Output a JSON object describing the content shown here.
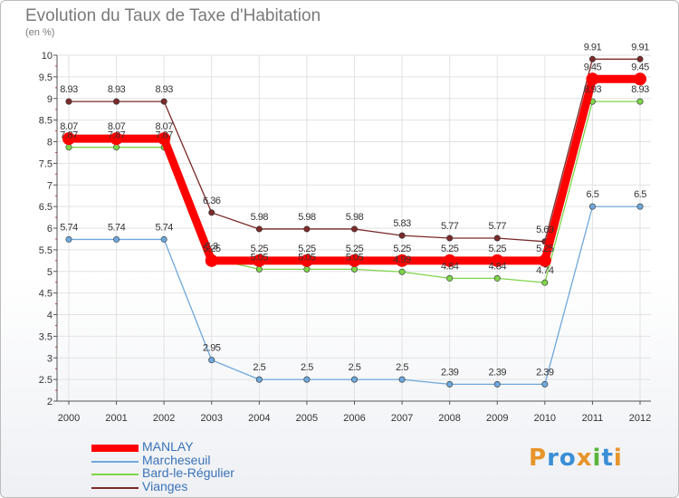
{
  "title": "Evolution du Taux de Taxe d'Habitation",
  "subtitle": "(en %)",
  "logo": {
    "text": "Proxiti",
    "colors": [
      "#e8942a",
      "#3a8fd6",
      "#3a8fd6",
      "#e8942a",
      "#5ab53a",
      "#3a8fd6",
      "#e8942a"
    ]
  },
  "chart_data": {
    "type": "line",
    "title": "Evolution du Taux de Taxe d'Habitation",
    "ylabel": "(en %)",
    "xlabel": "",
    "ylim": [
      2,
      10
    ],
    "yticks": [
      "2",
      "2.5",
      "3",
      "3.5",
      "4",
      "4.5",
      "5",
      "5.5",
      "6",
      "6.5",
      "7",
      "7.5",
      "8",
      "8.5",
      "9",
      "9.5",
      "10"
    ],
    "grid": true,
    "legend_position": "bottom-left",
    "categories": [
      "2000",
      "2001",
      "2002",
      "2003",
      "2004",
      "2005",
      "2006",
      "2007",
      "2008",
      "2009",
      "2010",
      "2011",
      "2012"
    ],
    "series": [
      {
        "name": "Vianges",
        "color": "#7b2a2a",
        "labels": [
          "8.93",
          "8.93",
          "8.93",
          "6.36",
          "5.98",
          "5.98",
          "5.98",
          "5.83",
          "5.77",
          "5.77",
          "5.69",
          "9.91",
          "9.91"
        ],
        "values": [
          8.93,
          8.93,
          8.93,
          6.36,
          5.98,
          5.98,
          5.98,
          5.83,
          5.77,
          5.77,
          5.69,
          9.91,
          9.91
        ]
      },
      {
        "name": "Bard-le-Régulier",
        "color": "#7fd44a",
        "labels": [
          "7.87",
          "7.87",
          "7.87",
          "5.3",
          "5.05",
          "5.05",
          "5.05",
          "4.99",
          "4.84",
          "4.84",
          "4.74",
          "8.93",
          "8.93"
        ],
        "values": [
          7.87,
          7.87,
          7.87,
          5.3,
          5.05,
          5.05,
          5.05,
          4.99,
          4.84,
          4.84,
          4.74,
          8.93,
          8.93
        ]
      },
      {
        "name": "Marcheseuil",
        "color": "#6fa8dc",
        "labels": [
          "5.74",
          "5.74",
          "5.74",
          "2.95",
          "2.5",
          "2.5",
          "2.5",
          "2.5",
          "2.39",
          "2.39",
          "2.39",
          "6.5",
          "6.5"
        ],
        "values": [
          5.74,
          5.74,
          5.74,
          2.95,
          2.5,
          2.5,
          2.5,
          2.5,
          2.39,
          2.39,
          2.39,
          6.5,
          6.5
        ]
      },
      {
        "name": "MANLAY",
        "color": "#ff0000",
        "labels": [
          "8.07",
          "8.07",
          "8.07",
          "5.25",
          "5.25",
          "5.25",
          "5.25",
          "5.25",
          "5.25",
          "5.25",
          "5.25",
          "9.45",
          "9.45"
        ],
        "values": [
          8.07,
          8.07,
          8.07,
          5.25,
          5.25,
          5.25,
          5.25,
          5.25,
          5.25,
          5.25,
          5.25,
          9.45,
          9.45
        ]
      }
    ],
    "legend": [
      {
        "name": "MANLAY",
        "color": "#ff0000"
      },
      {
        "name": "Marcheseuil",
        "color": "#6fa8dc"
      },
      {
        "name": "Bard-le-Régulier",
        "color": "#7fd44a"
      },
      {
        "name": "Vianges",
        "color": "#7b2a2a"
      }
    ]
  }
}
